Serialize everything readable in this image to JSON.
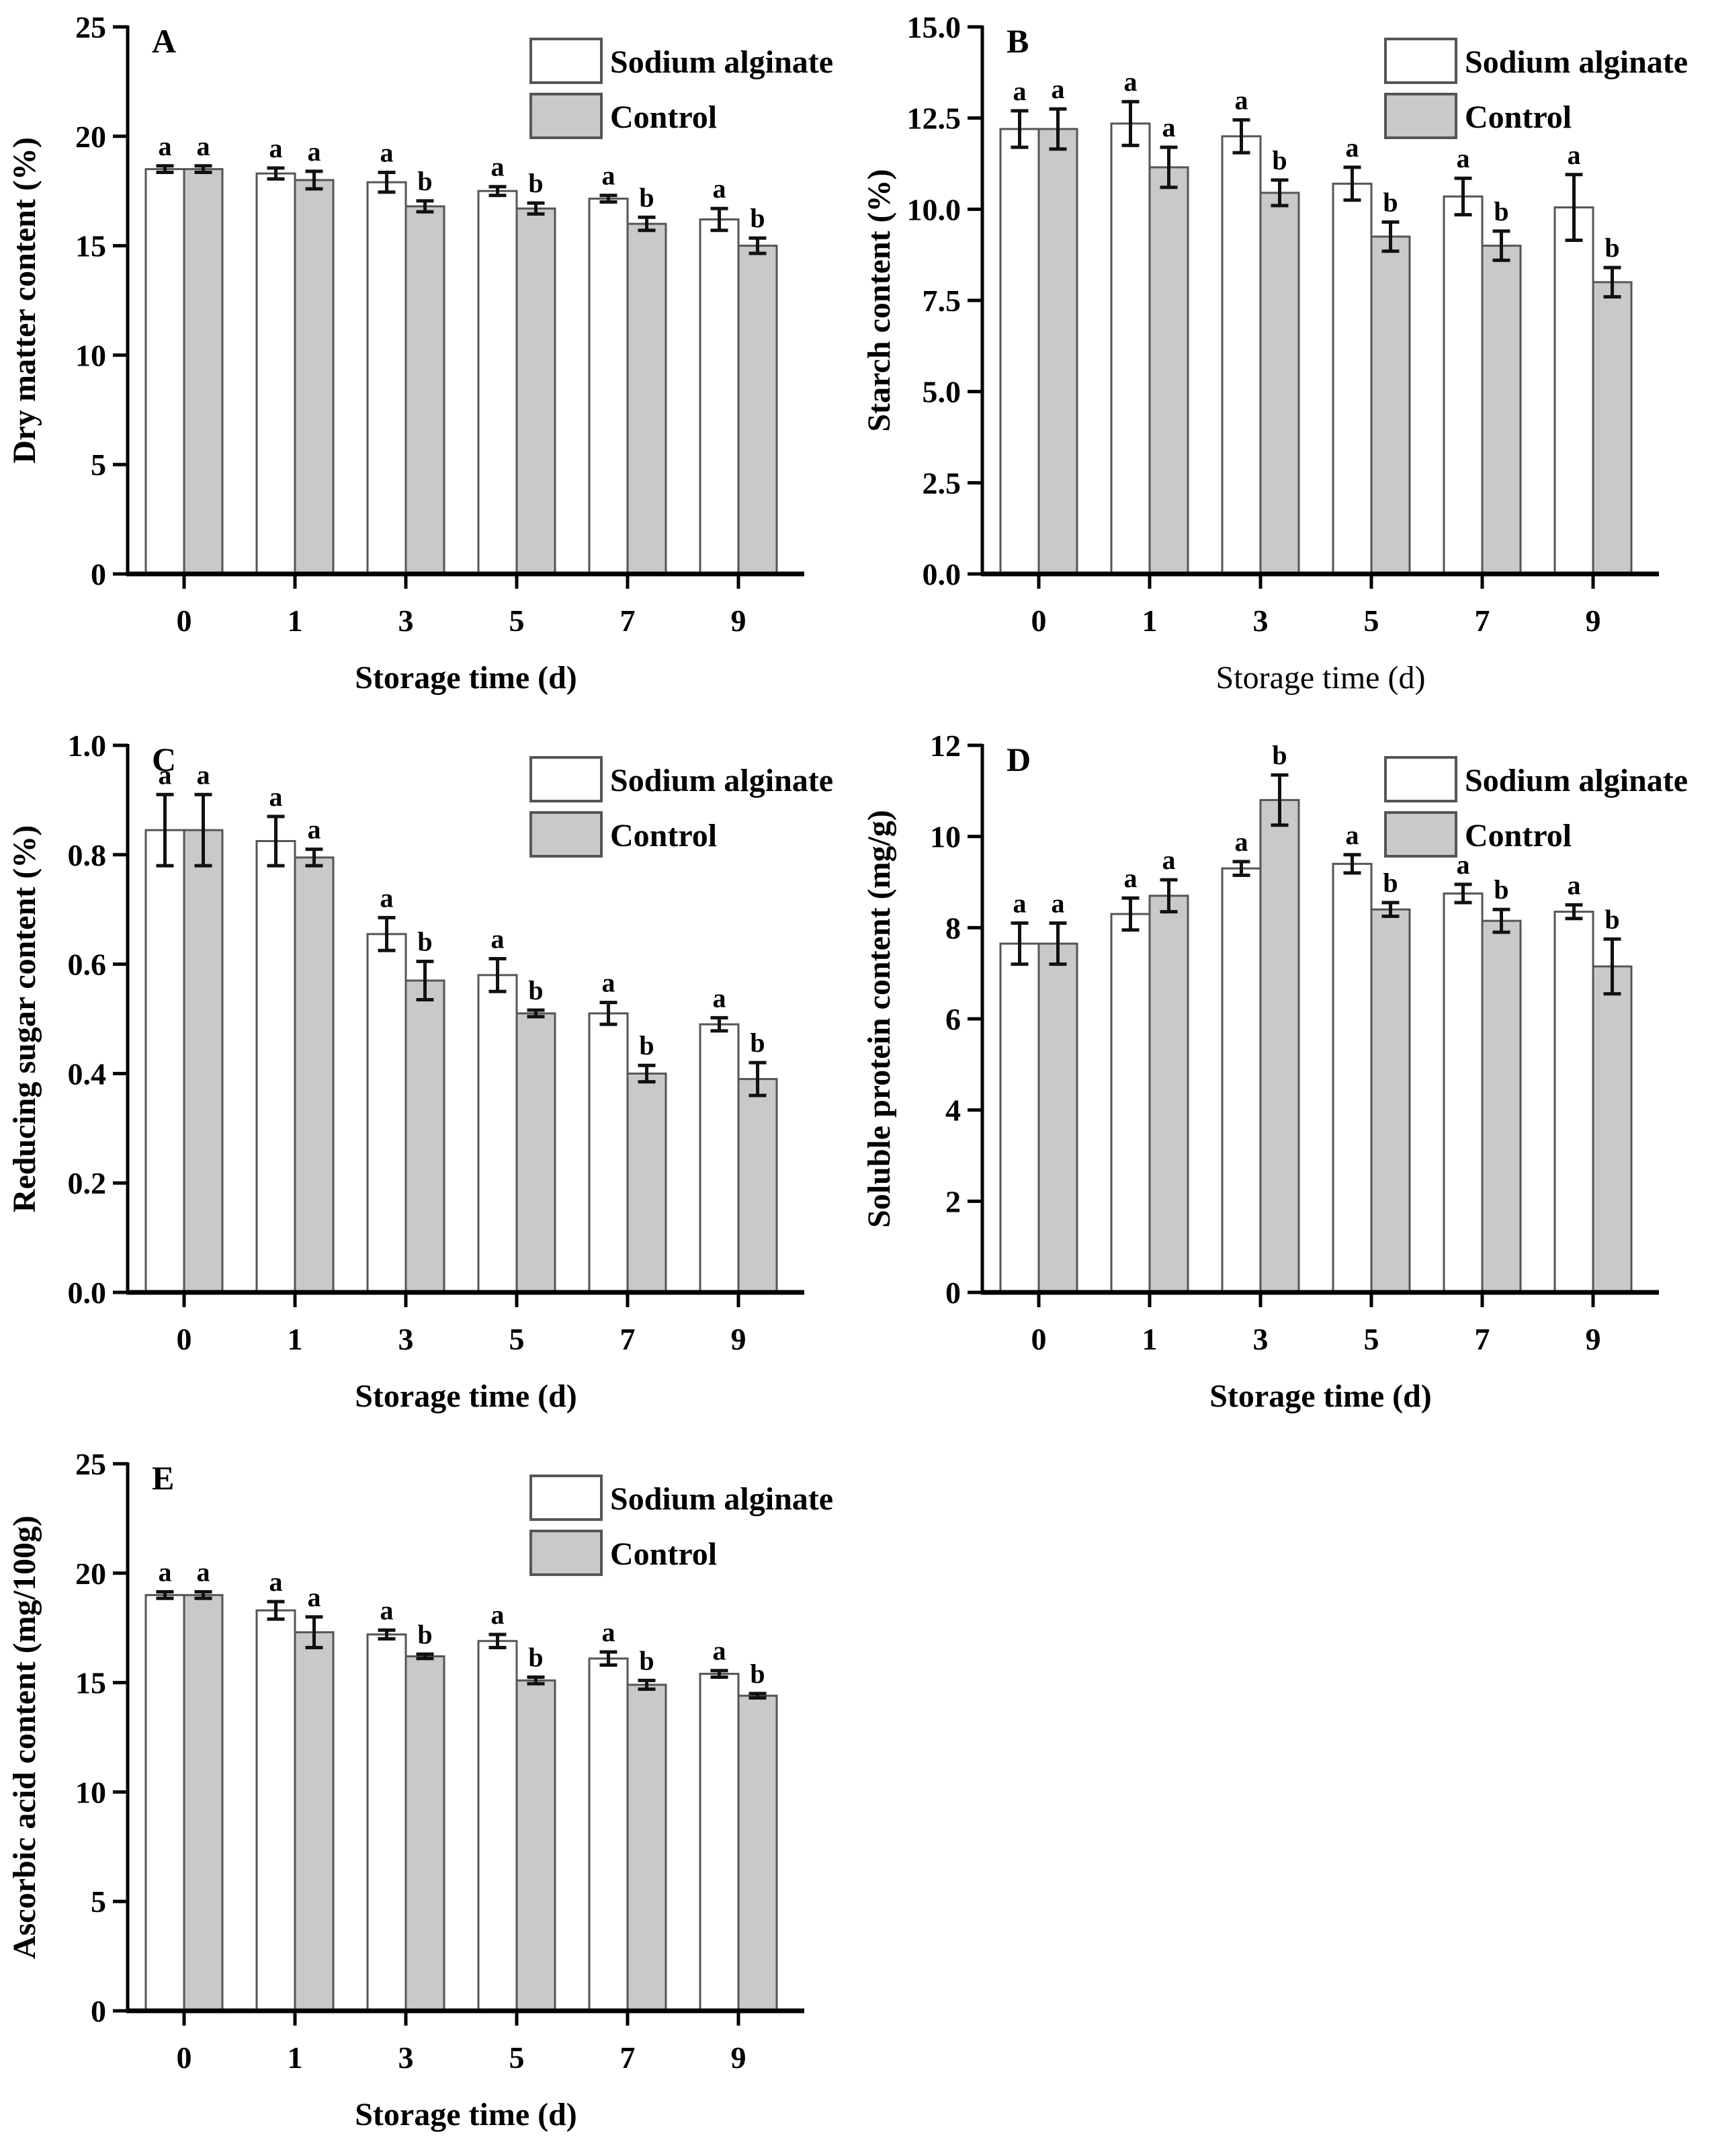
{
  "page": {
    "background": "#ffffff"
  },
  "colors": {
    "sodium_alginate_fill": "#ffffff",
    "control_fill": "#c9c9c9",
    "bar_border": "#555555",
    "axis": "#000000",
    "error_bar": "#111111",
    "text": "#000000"
  },
  "legend": {
    "items": [
      {
        "label": "Sodium alginate",
        "swatch": "white"
      },
      {
        "label": "Control",
        "swatch": "gray"
      }
    ]
  },
  "chart_data": [
    {
      "panel": "A",
      "type": "bar",
      "title": "",
      "xlabel": "Storage time (d)",
      "xlabel_bold": true,
      "ylabel": "Dry matter content (%)",
      "ylim": [
        0,
        25
      ],
      "yticks": [
        "0",
        "5",
        "10",
        "15",
        "20",
        "25"
      ],
      "categories": [
        "0",
        "1",
        "3",
        "5",
        "7",
        "9"
      ],
      "grid": false,
      "legend_position": "top-center",
      "series": [
        {
          "name": "Sodium alginate",
          "fill": "white",
          "values": [
            18.5,
            18.3,
            17.9,
            17.5,
            17.15,
            16.2
          ],
          "errors": [
            0.15,
            0.25,
            0.45,
            0.2,
            0.15,
            0.5
          ],
          "letters": [
            "a",
            "a",
            "a",
            "a",
            "a",
            "a"
          ]
        },
        {
          "name": "Control",
          "fill": "gray",
          "values": [
            18.5,
            18.0,
            16.8,
            16.7,
            16.0,
            15.0
          ],
          "errors": [
            0.15,
            0.4,
            0.25,
            0.25,
            0.3,
            0.35
          ],
          "letters": [
            "a",
            "a",
            "b",
            "b",
            "b",
            "b"
          ]
        }
      ]
    },
    {
      "panel": "B",
      "type": "bar",
      "title": "",
      "xlabel": "Storage time (d)",
      "xlabel_bold": false,
      "ylabel": "Starch content (%)",
      "ylim": [
        0,
        15
      ],
      "yticks": [
        "0.0",
        "2.5",
        "5.0",
        "7.5",
        "10.0",
        "12.5",
        "15.0"
      ],
      "categories": [
        "0",
        "1",
        "3",
        "5",
        "7",
        "9"
      ],
      "grid": false,
      "legend_position": "top-center",
      "series": [
        {
          "name": "Sodium alginate",
          "fill": "white",
          "values": [
            12.2,
            12.35,
            12.0,
            10.7,
            10.35,
            10.05
          ],
          "errors": [
            0.5,
            0.6,
            0.45,
            0.45,
            0.5,
            0.9
          ],
          "letters": [
            "a",
            "a",
            "a",
            "a",
            "a",
            "a"
          ]
        },
        {
          "name": "Control",
          "fill": "gray",
          "values": [
            12.2,
            11.15,
            10.45,
            9.25,
            9.0,
            8.0
          ],
          "errors": [
            0.55,
            0.55,
            0.35,
            0.4,
            0.4,
            0.4
          ],
          "letters": [
            "a",
            "a",
            "b",
            "b",
            "b",
            "b"
          ]
        }
      ]
    },
    {
      "panel": "C",
      "type": "bar",
      "title": "",
      "xlabel": "Storage time (d)",
      "xlabel_bold": true,
      "ylabel": "Reducing sugar content (%)",
      "ylim": [
        0,
        1.0
      ],
      "yticks": [
        "0.0",
        "0.2",
        "0.4",
        "0.6",
        "0.8",
        "1.0"
      ],
      "categories": [
        "0",
        "1",
        "3",
        "5",
        "7",
        "9"
      ],
      "grid": false,
      "legend_position": "top-center",
      "series": [
        {
          "name": "Sodium alginate",
          "fill": "white",
          "values": [
            0.845,
            0.825,
            0.655,
            0.58,
            0.51,
            0.49
          ],
          "errors": [
            0.065,
            0.045,
            0.03,
            0.03,
            0.02,
            0.012
          ],
          "letters": [
            "a",
            "a",
            "a",
            "a",
            "a",
            "a"
          ]
        },
        {
          "name": "Control",
          "fill": "gray",
          "values": [
            0.845,
            0.795,
            0.57,
            0.51,
            0.4,
            0.39
          ],
          "errors": [
            0.065,
            0.015,
            0.035,
            0.006,
            0.015,
            0.03
          ],
          "letters": [
            "a",
            "a",
            "b",
            "b",
            "b",
            "b"
          ]
        }
      ]
    },
    {
      "panel": "D",
      "type": "bar",
      "title": "",
      "xlabel": "Storage time (d)",
      "xlabel_bold": true,
      "ylabel": "Soluble protein content (mg/g)",
      "ylim": [
        0,
        12
      ],
      "yticks": [
        "0",
        "2",
        "4",
        "6",
        "8",
        "10",
        "12"
      ],
      "categories": [
        "0",
        "1",
        "3",
        "5",
        "7",
        "9"
      ],
      "grid": false,
      "legend_position": "top-center",
      "series": [
        {
          "name": "Sodium alginate",
          "fill": "white",
          "values": [
            7.65,
            8.3,
            9.3,
            9.4,
            8.75,
            8.35
          ],
          "errors": [
            0.45,
            0.35,
            0.15,
            0.2,
            0.2,
            0.15
          ],
          "letters": [
            "a",
            "a",
            "a",
            "a",
            "a",
            "a"
          ]
        },
        {
          "name": "Control",
          "fill": "gray",
          "values": [
            7.65,
            8.7,
            10.8,
            8.4,
            8.15,
            7.15
          ],
          "errors": [
            0.45,
            0.35,
            0.55,
            0.15,
            0.25,
            0.6
          ],
          "letters": [
            "a",
            "a",
            "b",
            "b",
            "b",
            "b"
          ]
        }
      ]
    },
    {
      "panel": "E",
      "type": "bar",
      "title": "",
      "xlabel": "Storage time (d)",
      "xlabel_bold": true,
      "ylabel": "Ascorbic acid  content (mg/100g)",
      "ylim": [
        0,
        25
      ],
      "yticks": [
        "0",
        "5",
        "10",
        "15",
        "20",
        "25"
      ],
      "categories": [
        "0",
        "1",
        "3",
        "5",
        "7",
        "9"
      ],
      "grid": false,
      "legend_position": "top-center",
      "series": [
        {
          "name": "Sodium alginate",
          "fill": "white",
          "values": [
            19.0,
            18.3,
            17.2,
            16.9,
            16.1,
            15.4
          ],
          "errors": [
            0.15,
            0.4,
            0.2,
            0.3,
            0.3,
            0.15
          ],
          "letters": [
            "a",
            "a",
            "a",
            "a",
            "a",
            "a"
          ]
        },
        {
          "name": "Control",
          "fill": "gray",
          "values": [
            19.0,
            17.3,
            16.2,
            15.1,
            14.9,
            14.4
          ],
          "errors": [
            0.15,
            0.7,
            0.1,
            0.15,
            0.2,
            0.1
          ],
          "letters": [
            "a",
            "a",
            "b",
            "b",
            "b",
            "b"
          ]
        }
      ]
    }
  ]
}
